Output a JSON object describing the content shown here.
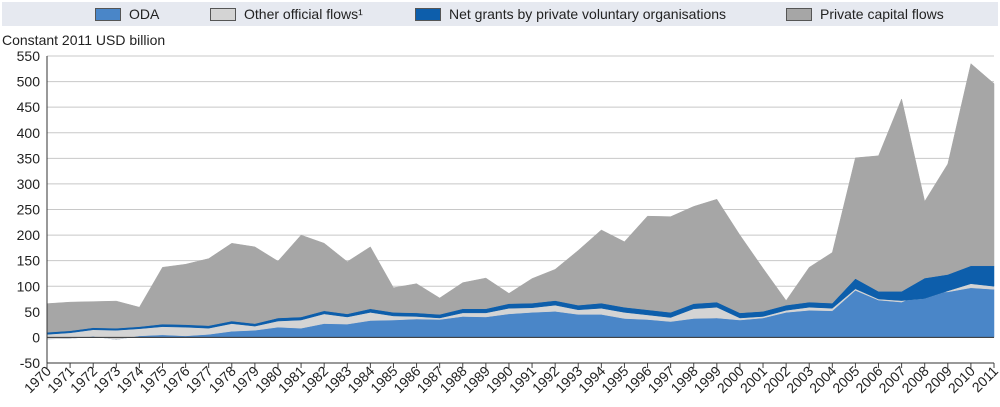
{
  "chart_data": {
    "type": "area",
    "ylabel": "Constant 2011 USD billion",
    "ylim": [
      -50,
      550
    ],
    "yticks": [
      -50,
      0,
      50,
      100,
      150,
      200,
      250,
      300,
      350,
      400,
      450,
      500,
      550
    ],
    "grid": true,
    "legend_position": "top",
    "x": [
      "1970",
      "1971",
      "1972",
      "1973",
      "1974",
      "1975",
      "1976",
      "1977",
      "1978",
      "1979",
      "1980",
      "1981",
      "1982",
      "1983",
      "1984",
      "1985",
      "1986",
      "1987",
      "1988",
      "1989",
      "1990",
      "1991",
      "1992",
      "1993",
      "1994",
      "1995",
      "1996",
      "1997",
      "1998",
      "1999",
      "2000",
      "2001",
      "2002",
      "2003",
      "2004",
      "2005",
      "2006",
      "2007",
      "2008",
      "2009",
      "2010",
      "2011"
    ],
    "series": [
      {
        "name": "ODA",
        "color": "#4a86c8",
        "values": [
          -3,
          -2,
          2,
          -4,
          3,
          5,
          3,
          6,
          12,
          14,
          20,
          18,
          27,
          26,
          33,
          34,
          36,
          35,
          41,
          40,
          46,
          49,
          51,
          45,
          45,
          37,
          35,
          31,
          37,
          38,
          34,
          38,
          49,
          53,
          52,
          92,
          73,
          69,
          88,
          89,
          97,
          94
        ]
      },
      {
        "name": "Other official flows¹",
        "color": "#d4d4d4",
        "values": [
          9,
          11,
          13,
          18,
          14,
          16,
          17,
          12,
          15,
          8,
          12,
          16,
          19,
          14,
          16,
          8,
          5,
          3,
          7,
          8,
          11,
          9,
          12,
          9,
          12,
          12,
          9,
          8,
          19,
          21,
          4,
          3,
          4,
          6,
          5,
          3,
          2,
          3,
          -12,
          2,
          8,
          6
        ]
      },
      {
        "name": "Net grants by private voluntary organisations",
        "color": "#0d5eab",
        "values": [
          4,
          4,
          4,
          4,
          4,
          5,
          5,
          5,
          5,
          5,
          6,
          6,
          6,
          6,
          7,
          7,
          7,
          7,
          8,
          8,
          9,
          9,
          9,
          9,
          10,
          10,
          10,
          10,
          10,
          10,
          10,
          10,
          10,
          10,
          10,
          20,
          15,
          18,
          40,
          32,
          35,
          40
        ]
      },
      {
        "name": "Private capital flows",
        "color": "#a6a6a6",
        "values": [
          56,
          56,
          51,
          53,
          38,
          111,
          118,
          131,
          152,
          150,
          111,
          160,
          132,
          102,
          121,
          48,
          57,
          32,
          51,
          60,
          20,
          48,
          61,
          107,
          143,
          128,
          183,
          187,
          190,
          201,
          152,
          84,
          9,
          68,
          99,
          236,
          265,
          376,
          150,
          216,
          395,
          356
        ]
      }
    ]
  }
}
